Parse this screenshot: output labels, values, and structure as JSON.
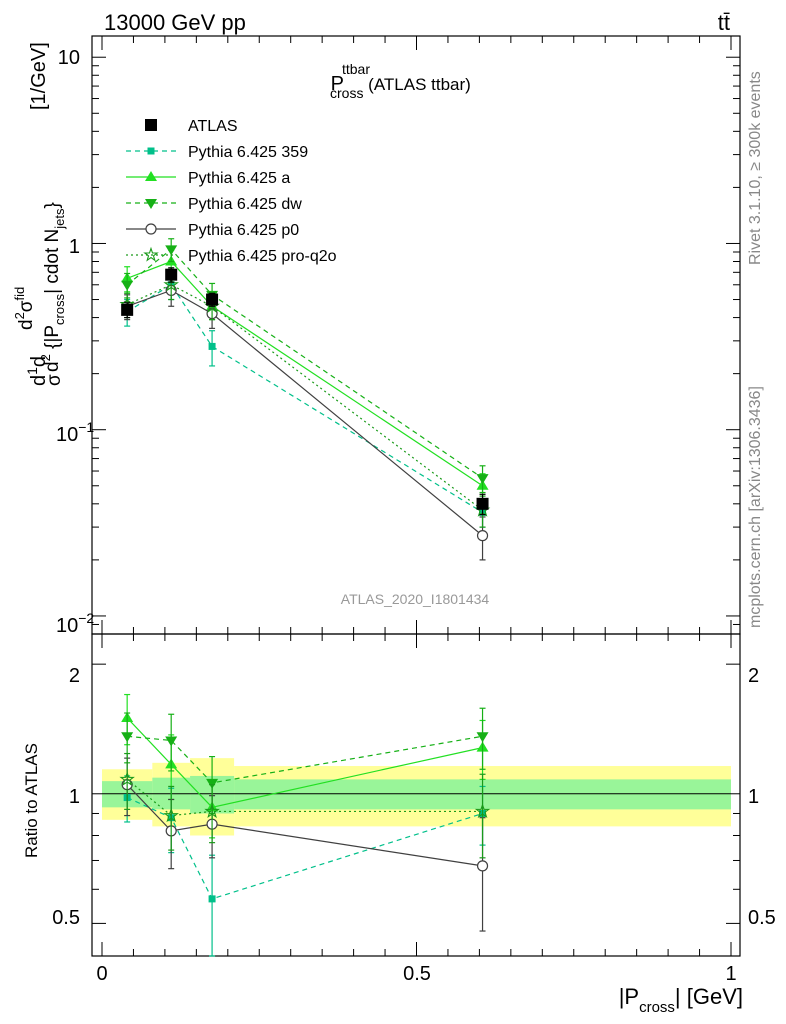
{
  "header": {
    "energy": "13000 GeV pp",
    "process": "tt̄"
  },
  "plot_title": {
    "main": "P",
    "sup": "ttbar",
    "sub": "cross",
    "tail": " (ATLAS ttbar)"
  },
  "side_labels": {
    "rivet": "Rivet 3.1.10, ≥ 300k events",
    "mcplots": "mcplots.cern.ch [arXiv:1306.3436]"
  },
  "analysis_id": "ATLAS_2020_I1801434",
  "ylabel_upper": "[1/GeV]",
  "ylabel_lower": "Ratio to ATLAS",
  "xlabel": {
    "main": "|P",
    "sub": "cross",
    "tail": "| [GeV]"
  },
  "upper_ticks": {
    "y": [
      "10",
      "1",
      "10",
      "10"
    ],
    "y_exp": [
      "",
      "",
      "−1",
      "−2"
    ]
  },
  "lower_ticks": {
    "y": [
      "2",
      "1",
      "0.5"
    ]
  },
  "x_ticks": [
    "0",
    "0.5",
    "1"
  ],
  "colors": {
    "data": "#000000",
    "pythia_359": "#00c08a",
    "pythia_a": "#22e022",
    "pythia_dw": "#16b016",
    "pythia_p0": "#404040",
    "pythia_proq2o": "#1a9a1a",
    "band_inner": "#99f599",
    "band_outer": "#ffff99"
  },
  "legend": [
    {
      "key": "data",
      "label": "ATLAS"
    },
    {
      "key": "pythia_359",
      "label": "Pythia 6.425 359"
    },
    {
      "key": "pythia_a",
      "label": "Pythia 6.425 a"
    },
    {
      "key": "pythia_dw",
      "label": "Pythia 6.425 dw"
    },
    {
      "key": "pythia_p0",
      "label": "Pythia 6.425 p0"
    },
    {
      "key": "pythia_proq2o",
      "label": "Pythia 6.425 pro-q2o"
    }
  ],
  "chart_data": {
    "type": "line",
    "x_scale": "linear",
    "xlim": [
      0,
      1
    ],
    "upper_panel": {
      "y_scale": "log",
      "ylim": [
        0.008,
        13
      ],
      "x": [
        0.04,
        0.11,
        0.175,
        0.605
      ],
      "series": [
        {
          "name": "ATLAS",
          "key": "data",
          "values": [
            0.44,
            0.68,
            0.5,
            0.04
          ],
          "errors": [
            0.04,
            0.06,
            0.04,
            0.005
          ]
        },
        {
          "name": "Pythia 6.425 359",
          "key": "pythia_359",
          "values": [
            0.43,
            0.6,
            0.28,
            0.036
          ],
          "errors": [
            0.07,
            0.1,
            0.06,
            0.006
          ]
        },
        {
          "name": "Pythia 6.425 a",
          "key": "pythia_a",
          "values": [
            0.65,
            0.8,
            0.46,
            0.05
          ],
          "errors": [
            0.1,
            0.12,
            0.07,
            0.008
          ]
        },
        {
          "name": "Pythia 6.425 dw",
          "key": "pythia_dw",
          "values": [
            0.6,
            0.93,
            0.53,
            0.055
          ],
          "errors": [
            0.09,
            0.13,
            0.08,
            0.009
          ]
        },
        {
          "name": "Pythia 6.425 p0",
          "key": "pythia_p0",
          "values": [
            0.46,
            0.56,
            0.42,
            0.027
          ],
          "errors": [
            0.07,
            0.1,
            0.07,
            0.007
          ]
        },
        {
          "name": "Pythia 6.425 pro-q2o",
          "key": "pythia_proq2o",
          "values": [
            0.47,
            0.6,
            0.46,
            0.037
          ],
          "errors": [
            0.07,
            0.1,
            0.07,
            0.007
          ]
        }
      ]
    },
    "ratio_panel": {
      "y_scale": "log",
      "ylim": [
        0.42,
        2.35
      ],
      "bins": [
        [
          0,
          0.08
        ],
        [
          0.08,
          0.14
        ],
        [
          0.14,
          0.21
        ],
        [
          0.21,
          1.0
        ]
      ],
      "band_inner": [
        [
          0.93,
          1.07
        ],
        [
          0.92,
          1.09
        ],
        [
          0.9,
          1.1
        ],
        [
          0.92,
          1.08
        ]
      ],
      "band_outer": [
        [
          0.87,
          1.14
        ],
        [
          0.84,
          1.18
        ],
        [
          0.8,
          1.21
        ],
        [
          0.84,
          1.16
        ]
      ],
      "x": [
        0.04,
        0.11,
        0.175,
        0.605
      ],
      "series": [
        {
          "key": "pythia_359",
          "values": [
            0.98,
            0.88,
            0.57,
            0.9
          ],
          "errors": [
            0.12,
            0.15,
            0.15,
            0.14
          ]
        },
        {
          "key": "pythia_a",
          "values": [
            1.5,
            1.17,
            0.93,
            1.28
          ],
          "errors": [
            0.2,
            0.2,
            0.14,
            0.2
          ]
        },
        {
          "key": "pythia_dw",
          "values": [
            1.36,
            1.33,
            1.06,
            1.36
          ],
          "errors": [
            0.18,
            0.2,
            0.16,
            0.22
          ]
        },
        {
          "key": "pythia_p0",
          "values": [
            1.05,
            0.82,
            0.85,
            0.68
          ],
          "errors": [
            0.16,
            0.15,
            0.14,
            0.2
          ]
        },
        {
          "key": "pythia_proq2o",
          "values": [
            1.08,
            0.89,
            0.91,
            0.91
          ],
          "errors": [
            0.16,
            0.15,
            0.14,
            0.2
          ]
        }
      ]
    }
  }
}
